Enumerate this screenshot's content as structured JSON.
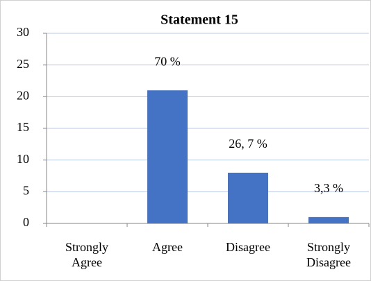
{
  "chart_data": {
    "type": "bar",
    "title": "Statement 15",
    "categories": [
      "Strongly Agree",
      "Agree",
      "Disagree",
      "Strongly Disagree"
    ],
    "values": [
      0,
      21,
      8,
      1
    ],
    "annotations": [
      null,
      "70 %",
      "26, 7 %",
      "3,3 %"
    ],
    "color": "#4472c4",
    "ylim": [
      0,
      30
    ],
    "yticks": [
      0,
      5,
      10,
      15,
      20,
      25,
      30
    ],
    "grid": true
  }
}
